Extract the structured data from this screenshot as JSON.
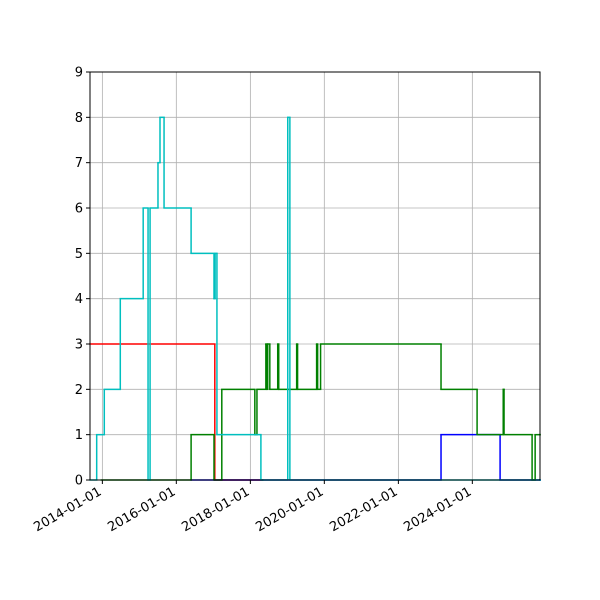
{
  "chart_data": {
    "type": "step",
    "xlim": [
      "2013-09-01",
      "2025-10-30"
    ],
    "xticks": [
      "2014-01-01",
      "2016-01-01",
      "2018-01-01",
      "2020-01-01",
      "2022-01-01",
      "2024-01-01"
    ],
    "ylim": [
      0,
      9
    ],
    "yticks": [
      0,
      1,
      2,
      3,
      4,
      5,
      6,
      7,
      8,
      9
    ],
    "grid": true,
    "series": [
      {
        "color": "#ff0000",
        "x": [
          "2013-09-01",
          "2017-01-15",
          "2018-05-01"
        ],
        "values": [
          3,
          0,
          0
        ]
      },
      {
        "color": "#0000ff",
        "x": [
          "2016-05-26",
          "2023-02-26",
          "2024-10-01",
          "2025-10-30"
        ],
        "values": [
          0,
          1,
          0,
          0
        ]
      },
      {
        "color": "#008000",
        "x": [
          "2013-12-22",
          "2016-05-26",
          "2017-01-07",
          "2017-03-25",
          "2018-02-14",
          "2018-03-07",
          "2018-06-03",
          "2018-06-13",
          "2018-06-21",
          "2018-07-12",
          "2018-09-28",
          "2018-10-08",
          "2019-04-03",
          "2019-04-12",
          "2019-10-17",
          "2019-10-27",
          "2019-11-25",
          "2023-02-26",
          "2024-02-17",
          "2024-11-01",
          "2024-11-09",
          "2025-08-13",
          "2025-09-12",
          "2025-10-30"
        ],
        "values": [
          0,
          1,
          0,
          2,
          1,
          2,
          3,
          2,
          3,
          2,
          3,
          2,
          3,
          2,
          3,
          2,
          3,
          2,
          1,
          2,
          1,
          0,
          1,
          1
        ]
      },
      {
        "color": "#00bfbf",
        "x": [
          "2013-09-01",
          "2013-11-06",
          "2014-01-20",
          "2014-06-27",
          "2015-02-08",
          "2015-03-28",
          "2015-04-17",
          "2015-07-04",
          "2015-07-24",
          "2015-09-02",
          "2016-05-26",
          "2017-01-07",
          "2017-01-18",
          "2017-02-05",
          "2018-04-15",
          "2018-05-04",
          "2019-01-05",
          "2019-01-26",
          "2025-10-30"
        ],
        "values": [
          0,
          1,
          2,
          4,
          6,
          0,
          6,
          7,
          8,
          6,
          5,
          4,
          5,
          1,
          0,
          0,
          8,
          0,
          0
        ]
      }
    ]
  }
}
